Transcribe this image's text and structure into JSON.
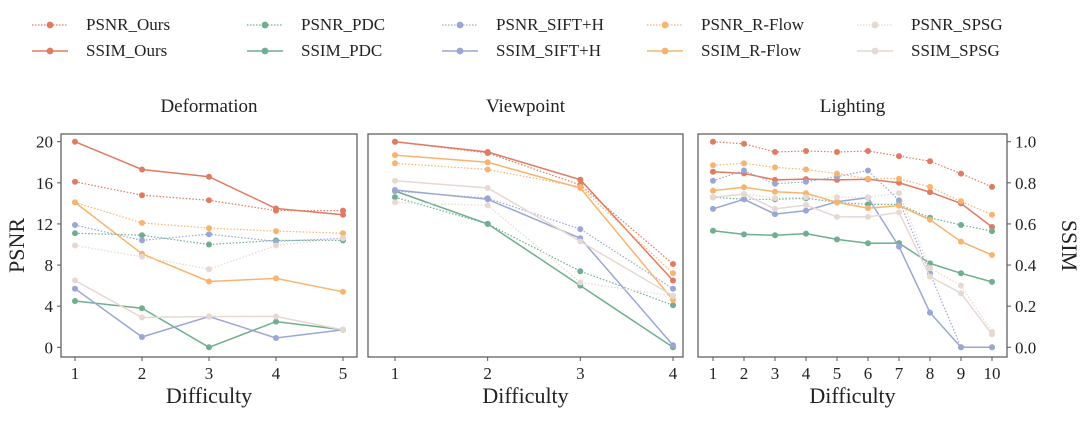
{
  "legend": [
    {
      "name": "PSNR_Ours",
      "color": "#e07b62",
      "style": "dotted"
    },
    {
      "name": "SSIM_Ours",
      "color": "#e07b62",
      "style": "solid"
    },
    {
      "name": "PSNR_PDC",
      "color": "#6fae8e",
      "style": "dotted"
    },
    {
      "name": "SSIM_PDC",
      "color": "#6fae8e",
      "style": "solid"
    },
    {
      "name": "PSNR_SIFT+H",
      "color": "#9aa6d6",
      "style": "dotted"
    },
    {
      "name": "SSIM_SIFT+H",
      "color": "#9aa6d6",
      "style": "solid"
    },
    {
      "name": "PSNR_R-Flow",
      "color": "#f8b46e",
      "style": "dotted"
    },
    {
      "name": "SSIM_R-Flow",
      "color": "#f8b46e",
      "style": "solid"
    },
    {
      "name": "PSNR_SPSG",
      "color": "#e6d8d2",
      "style": "dotted"
    },
    {
      "name": "SSIM_SPSG",
      "color": "#e6d8d2",
      "style": "solid"
    }
  ],
  "chart_data": [
    {
      "type": "line",
      "title": "Deformation",
      "xlabel": "Difficulty",
      "ylabel": "PSNR",
      "y2label": "",
      "x": [
        1,
        2,
        3,
        4,
        5
      ],
      "ylim": [
        0,
        20
      ],
      "y2lim": [
        0,
        1
      ],
      "yticks": [
        0,
        4,
        8,
        12,
        16,
        20
      ],
      "y2ticks": [],
      "grid": false,
      "series": [
        {
          "name": "PSNR_Ours",
          "axis": "psnr",
          "values": [
            16.1,
            14.8,
            14.3,
            13.3,
            13.3
          ]
        },
        {
          "name": "SSIM_Ours",
          "axis": "ssim",
          "values": [
            1.0,
            0.865,
            0.83,
            0.675,
            0.645
          ]
        },
        {
          "name": "PSNR_PDC",
          "axis": "psnr",
          "values": [
            11.1,
            10.9,
            10.0,
            10.4,
            10.4
          ]
        },
        {
          "name": "SSIM_PDC",
          "axis": "ssim",
          "values": [
            0.225,
            0.19,
            0.0,
            0.125,
            0.085
          ]
        },
        {
          "name": "PSNR_SIFT+H",
          "axis": "psnr",
          "values": [
            11.9,
            10.4,
            11.0,
            10.3,
            10.6
          ]
        },
        {
          "name": "SSIM_SIFT+H",
          "axis": "ssim",
          "values": [
            0.285,
            0.05,
            0.15,
            0.045,
            0.085
          ]
        },
        {
          "name": "PSNR_R-Flow",
          "axis": "psnr",
          "values": [
            14.1,
            12.1,
            11.6,
            11.3,
            11.1
          ]
        },
        {
          "name": "SSIM_R-Flow",
          "axis": "ssim",
          "values": [
            0.705,
            0.455,
            0.32,
            0.335,
            0.27
          ]
        },
        {
          "name": "PSNR_SPSG",
          "axis": "psnr",
          "values": [
            9.9,
            8.8,
            7.6,
            9.9,
            10.6
          ]
        },
        {
          "name": "SSIM_SPSG",
          "axis": "ssim",
          "values": [
            0.325,
            0.145,
            0.15,
            0.15,
            0.085
          ]
        }
      ]
    },
    {
      "type": "line",
      "title": "Viewpoint",
      "xlabel": "Difficulty",
      "ylabel": "",
      "y2label": "",
      "x": [
        1,
        2,
        3,
        4
      ],
      "ylim": [
        0,
        20
      ],
      "y2lim": [
        0,
        1
      ],
      "yticks": [],
      "y2ticks": [],
      "grid": false,
      "series": [
        {
          "name": "PSNR_Ours",
          "axis": "psnr",
          "values": [
            20.0,
            18.9,
            15.8,
            8.1
          ]
        },
        {
          "name": "SSIM_Ours",
          "axis": "ssim",
          "values": [
            1.0,
            0.95,
            0.815,
            0.325
          ]
        },
        {
          "name": "PSNR_PDC",
          "axis": "psnr",
          "values": [
            14.6,
            12.0,
            7.4,
            4.1
          ]
        },
        {
          "name": "SSIM_PDC",
          "axis": "ssim",
          "values": [
            0.76,
            0.6,
            0.3,
            0.0
          ]
        },
        {
          "name": "PSNR_SIFT+H",
          "axis": "psnr",
          "values": [
            15.2,
            14.5,
            11.5,
            5.7
          ]
        },
        {
          "name": "SSIM_SIFT+H",
          "axis": "ssim",
          "values": [
            0.765,
            0.72,
            0.53,
            0.01
          ]
        },
        {
          "name": "PSNR_R-Flow",
          "axis": "psnr",
          "values": [
            17.9,
            17.3,
            15.6,
            7.2
          ]
        },
        {
          "name": "SSIM_R-Flow",
          "axis": "ssim",
          "values": [
            0.935,
            0.9,
            0.775,
            0.23
          ]
        },
        {
          "name": "PSNR_SPSG",
          "axis": "psnr",
          "values": [
            14.1,
            13.8,
            6.3,
            5.0
          ]
        },
        {
          "name": "SSIM_SPSG",
          "axis": "ssim",
          "values": [
            0.81,
            0.775,
            0.515,
            0.25
          ]
        }
      ]
    },
    {
      "type": "line",
      "title": "Lighting",
      "xlabel": "Difficulty",
      "ylabel": "",
      "y2label": "SSIM",
      "x": [
        1,
        2,
        3,
        4,
        5,
        6,
        7,
        8,
        9,
        10
      ],
      "ylim": [
        0,
        20
      ],
      "y2lim": [
        0,
        1
      ],
      "yticks": [],
      "y2ticks": [
        "0.0",
        "0.2",
        "0.4",
        "0.6",
        "0.8",
        "1.0"
      ],
      "grid": false,
      "series": [
        {
          "name": "PSNR_Ours",
          "axis": "psnr",
          "values": [
            20.0,
            19.8,
            19.0,
            19.1,
            19.0,
            19.1,
            18.6,
            18.1,
            16.9,
            15.6
          ]
        },
        {
          "name": "SSIM_Ours",
          "axis": "ssim",
          "values": [
            0.854,
            0.846,
            0.814,
            0.818,
            0.814,
            0.817,
            0.8,
            0.755,
            0.7,
            0.585
          ]
        },
        {
          "name": "PSNR_PDC",
          "axis": "psnr",
          "values": [
            14.6,
            14.4,
            14.4,
            14.5,
            14.1,
            13.9,
            13.9,
            12.6,
            11.9,
            11.3
          ]
        },
        {
          "name": "SSIM_PDC",
          "axis": "ssim",
          "values": [
            0.567,
            0.549,
            0.545,
            0.553,
            0.525,
            0.506,
            0.507,
            0.408,
            0.36,
            0.318
          ]
        },
        {
          "name": "PSNR_SIFT+H",
          "axis": "psnr",
          "values": [
            16.2,
            17.2,
            15.9,
            16.1,
            16.6,
            17.2,
            14.3,
            7.2,
            0.0,
            0.0
          ]
        },
        {
          "name": "SSIM_SIFT+H",
          "axis": "ssim",
          "values": [
            0.673,
            0.72,
            0.648,
            0.665,
            0.708,
            0.728,
            0.49,
            0.169,
            0.0,
            0.0
          ]
        },
        {
          "name": "PSNR_R-Flow",
          "axis": "psnr",
          "values": [
            17.7,
            17.9,
            17.5,
            17.3,
            16.9,
            16.4,
            16.4,
            15.6,
            14.2,
            12.9
          ]
        },
        {
          "name": "SSIM_R-Flow",
          "axis": "ssim",
          "values": [
            0.762,
            0.778,
            0.757,
            0.749,
            0.705,
            0.677,
            0.689,
            0.62,
            0.514,
            0.449
          ]
        },
        {
          "name": "PSNR_SPSG",
          "axis": "psnr",
          "values": [
            14.6,
            14.9,
            14.5,
            14.6,
            14.6,
            14.6,
            15.0,
            7.7,
            6.0,
            1.5
          ]
        },
        {
          "name": "SSIM_SPSG",
          "axis": "ssim",
          "values": [
            0.73,
            0.745,
            0.673,
            0.692,
            0.634,
            0.634,
            0.656,
            0.344,
            0.263,
            0.063
          ]
        }
      ]
    }
  ]
}
